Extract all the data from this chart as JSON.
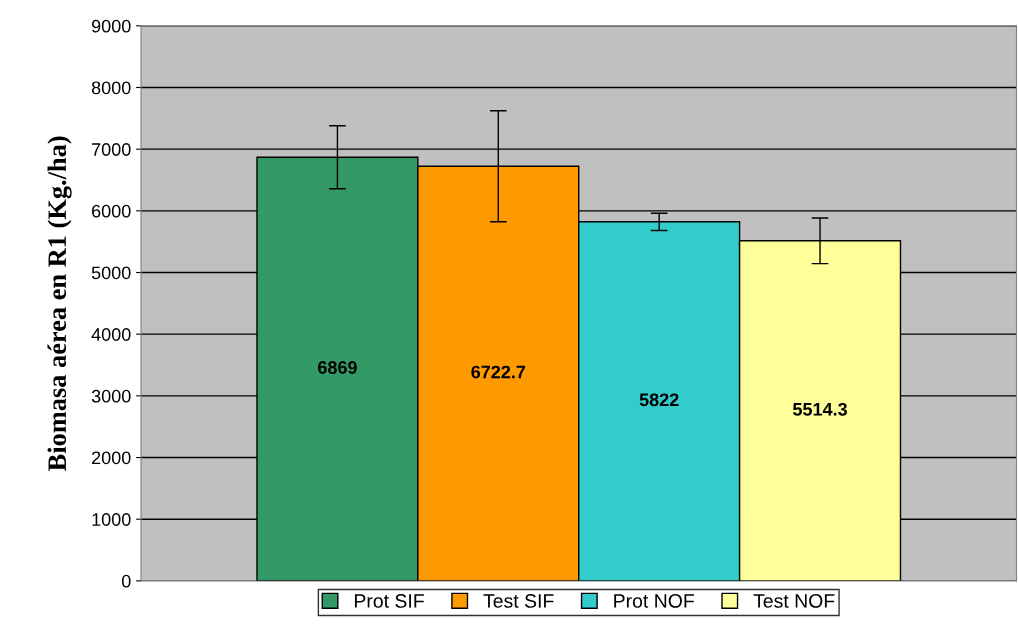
{
  "chart_data": {
    "type": "bar",
    "ylabel": "Biomasa aérea en R1 (Kg./ha)",
    "categories": [
      null
    ],
    "series": [
      {
        "name": "Prot SIF",
        "color": "#339966",
        "values": [
          6869
        ],
        "errors": [
          510
        ]
      },
      {
        "name": "Test SIF",
        "color": "#ff9900",
        "values": [
          6722.7
        ],
        "errors": [
          900
        ]
      },
      {
        "name": "Prot NOF",
        "color": "#33cccc",
        "values": [
          5822
        ],
        "errors": [
          140
        ]
      },
      {
        "name": "Test NOF",
        "color": "#ffff99",
        "values": [
          5514.3
        ],
        "errors": [
          370
        ]
      }
    ],
    "ylim": [
      0,
      9000
    ],
    "yticks": [
      0,
      1000,
      2000,
      3000,
      4000,
      5000,
      6000,
      7000,
      8000,
      9000
    ],
    "grid": "y",
    "legend": "bottom",
    "data_labels": true
  }
}
